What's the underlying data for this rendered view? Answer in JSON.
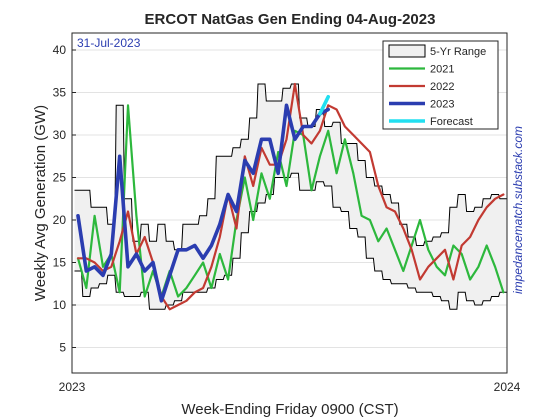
{
  "chart_data": {
    "type": "line",
    "title": "ERCOT NatGas Gen Ending 04-Aug-2023",
    "xlabel": "Week-Ending Friday 0900 (CST)",
    "ylabel": "Weekly Avg Generation (GW)",
    "annotation": "31-Jul-2023",
    "watermark": "impedancematch.substack.com",
    "x_ticks": [
      "2023",
      "2024"
    ],
    "x_domain": [
      "2023-01-01",
      "2024-01-01"
    ],
    "ylim": [
      2,
      42
    ],
    "y_ticks": [
      "5",
      "10",
      "15",
      "20",
      "25",
      "30",
      "35",
      "40"
    ],
    "grid": true,
    "legend_position": "top-right",
    "colors": {
      "range_fill": "#f0f0f0",
      "range_edge": "#000000",
      "y2021": "#2db83d",
      "y2022": "#c23a32",
      "y2023": "#2b3db0",
      "forecast": "#22dff0",
      "annotation": "#2b3db0",
      "watermark": "#2b3db0"
    },
    "weeks": [
      "2023-01-06",
      "2023-01-13",
      "2023-01-20",
      "2023-01-27",
      "2023-02-03",
      "2023-02-10",
      "2023-02-17",
      "2023-02-24",
      "2023-03-03",
      "2023-03-10",
      "2023-03-17",
      "2023-03-24",
      "2023-03-31",
      "2023-04-07",
      "2023-04-14",
      "2023-04-21",
      "2023-04-28",
      "2023-05-05",
      "2023-05-12",
      "2023-05-19",
      "2023-05-26",
      "2023-06-02",
      "2023-06-09",
      "2023-06-16",
      "2023-06-23",
      "2023-06-30",
      "2023-07-07",
      "2023-07-14",
      "2023-07-21",
      "2023-07-28",
      "2023-08-04",
      "2023-08-11",
      "2023-08-18",
      "2023-08-25",
      "2023-09-01",
      "2023-09-08",
      "2023-09-15",
      "2023-09-22",
      "2023-09-29",
      "2023-10-06",
      "2023-10-13",
      "2023-10-20",
      "2023-10-27",
      "2023-11-03",
      "2023-11-10",
      "2023-11-17",
      "2023-11-24",
      "2023-12-01",
      "2023-12-08",
      "2023-12-15",
      "2023-12-22",
      "2023-12-29"
    ],
    "series": [
      {
        "name": "5-Yr Range",
        "kind": "band",
        "upper": [
          23.5,
          23.5,
          21.5,
          21.5,
          19.5,
          33.5,
          22.5,
          17.5,
          19.5,
          17.5,
          19.5,
          17.5,
          16.5,
          19.5,
          19.5,
          20.5,
          22.5,
          27.5,
          27.5,
          28.5,
          29.5,
          32.0,
          36.0,
          34.0,
          34.0,
          35.5,
          36.0,
          32.0,
          31.0,
          33.0,
          31.0,
          31.5,
          29.0,
          29.0,
          27.0,
          25.0,
          24.0,
          23.0,
          22.0,
          19.5,
          18.0,
          17.0,
          17.5,
          18.0,
          18.5,
          21.5,
          23.0,
          21.0,
          21.5,
          22.5,
          23.0,
          22.5
        ],
        "lower": [
          14.0,
          11.0,
          12.0,
          12.5,
          13.5,
          11.5,
          11.0,
          11.0,
          11.5,
          9.5,
          9.5,
          10.0,
          10.5,
          11.5,
          11.5,
          11.5,
          12.0,
          13.0,
          13.5,
          15.5,
          18.5,
          21.0,
          22.0,
          23.0,
          25.0,
          25.0,
          25.5,
          23.5,
          23.5,
          24.5,
          24.0,
          21.5,
          21.0,
          19.0,
          18.0,
          15.5,
          14.0,
          13.0,
          12.5,
          12.5,
          12.0,
          11.5,
          11.5,
          11.0,
          10.5,
          9.5,
          11.5,
          10.5,
          10.0,
          10.5,
          11.0,
          11.5
        ]
      },
      {
        "name": "2021",
        "kind": "line",
        "values": [
          15.5,
          12.0,
          20.5,
          14.5,
          16.0,
          11.5,
          33.5,
          20.5,
          11.0,
          14.0,
          11.0,
          14.0,
          11.0,
          12.0,
          13.5,
          15.0,
          12.0,
          16.0,
          13.0,
          20.0,
          25.0,
          20.0,
          25.5,
          22.5,
          28.0,
          24.0,
          30.5,
          30.0,
          23.5,
          27.5,
          30.5,
          25.5,
          29.5,
          25.5,
          20.5,
          20.0,
          17.5,
          19.0,
          16.5,
          14.0,
          17.0,
          20.0,
          16.5,
          14.5,
          13.5,
          17.0,
          16.0,
          13.0,
          14.5,
          17.0,
          14.5,
          11.5
        ]
      },
      {
        "name": "2022",
        "kind": "line",
        "values": [
          15.5,
          15.5,
          15.0,
          14.0,
          14.5,
          17.5,
          21.0,
          16.0,
          18.0,
          15.0,
          11.0,
          9.5,
          10.0,
          10.5,
          11.5,
          12.0,
          14.5,
          18.0,
          23.0,
          19.0,
          27.5,
          24.0,
          28.5,
          26.5,
          26.5,
          29.5,
          36.0,
          30.0,
          29.0,
          30.5,
          33.5,
          33.0,
          31.0,
          30.0,
          29.0,
          28.0,
          24.0,
          21.5,
          21.0,
          19.0,
          16.5,
          13.0,
          14.5,
          15.5,
          16.5,
          13.0,
          17.0,
          18.0,
          20.0,
          21.5,
          22.5,
          23.0
        ]
      },
      {
        "name": "2023",
        "kind": "line",
        "values": [
          20.5,
          14.0,
          14.5,
          13.5,
          16.0,
          27.5,
          14.5,
          16.0,
          14.0,
          15.0,
          10.5,
          13.5,
          16.5,
          16.5,
          17.0,
          15.5,
          17.0,
          19.5,
          23.0,
          21.0,
          27.0,
          25.5,
          29.5,
          29.5,
          25.5,
          33.5,
          29.5,
          31.0,
          31.0,
          32.5,
          33.0
        ]
      },
      {
        "name": "Forecast",
        "kind": "line",
        "values": [
          null,
          null,
          null,
          null,
          null,
          null,
          null,
          null,
          null,
          null,
          null,
          null,
          null,
          null,
          null,
          null,
          null,
          null,
          null,
          null,
          null,
          null,
          null,
          null,
          null,
          null,
          null,
          null,
          null,
          32.5,
          34.5
        ]
      }
    ]
  }
}
